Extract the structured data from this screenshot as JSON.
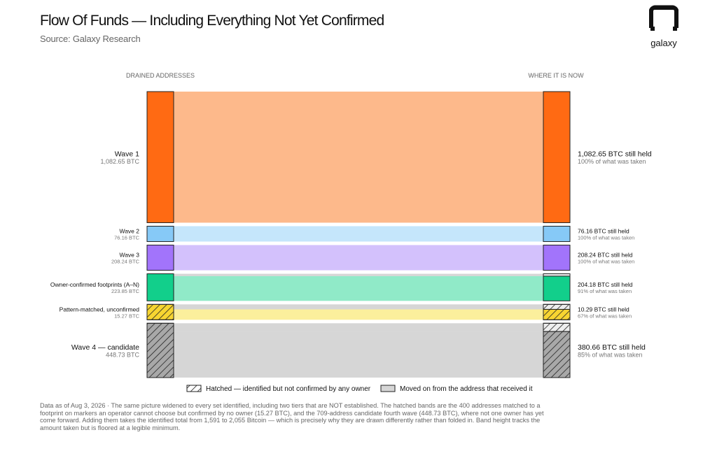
{
  "header": {
    "title": "Flow Of Funds — Including Everything Not Yet Confirmed",
    "subtitle": "Source: Galaxy Research",
    "logo_text": "galaxy"
  },
  "chart_data": {
    "type": "sankey",
    "left_header": "DRAINED ADDRESSES",
    "right_header": "WHERE IT IS NOW",
    "unit": "BTC",
    "flows": [
      {
        "name": "Wave 1",
        "taken": 1082.65,
        "taken_label": "1,082.65 BTC",
        "held": 1082.65,
        "held_label": "1,082.65 BTC still held",
        "pct_label": "100% of what was taken",
        "hatched": false,
        "color": "#ff6a13",
        "band_color": "#fdb98b"
      },
      {
        "name": "Wave 2",
        "taken": 76.16,
        "taken_label": "76.16 BTC",
        "held": 76.16,
        "held_label": "76.16 BTC still held",
        "pct_label": "100% of what was taken",
        "hatched": false,
        "color": "#86c9f7",
        "band_color": "#c5e6fb"
      },
      {
        "name": "Wave 3",
        "taken": 208.24,
        "taken_label": "208.24 BTC",
        "held": 208.24,
        "held_label": "208.24 BTC still held",
        "pct_label": "100% of what was taken",
        "hatched": false,
        "color": "#a274fb",
        "band_color": "#d3c1fc"
      },
      {
        "name": "Owner-confirmed footprints (A–N)",
        "taken": 223.85,
        "taken_label": "223.85 BTC",
        "held": 204.18,
        "held_label": "204.18 BTC still held",
        "pct_label": "91% of what was taken",
        "hatched": false,
        "color": "#12cf8b",
        "band_color": "#90eac8"
      },
      {
        "name": "Pattern-matched, unconfirmed",
        "taken": 15.27,
        "taken_label": "15.27 BTC",
        "held": 10.29,
        "held_label": "10.29 BTC still held",
        "pct_label": "67% of what was taken",
        "hatched": true,
        "color": "#f7d531",
        "band_color": "#fbef9c"
      },
      {
        "name": "Wave 4 — candidate",
        "taken": 448.73,
        "taken_label": "448.73 BTC",
        "held": 380.66,
        "held_label": "380.66 BTC still held",
        "pct_label": "85% of what was taken",
        "hatched": true,
        "color": "#a8a8a8",
        "band_color": "#d6d6d6"
      }
    ],
    "legend": [
      {
        "label": "Hatched — identified but not confirmed by any owner",
        "kind": "hatched"
      },
      {
        "label": "Moved on from the address that received it",
        "kind": "moved"
      }
    ],
    "colors": {
      "moved": "#d6d6d6",
      "outline": "#222222"
    }
  },
  "footnote": "Data as of Aug 3, 2026 · The same picture widened to every set identified, including two tiers that are NOT established. The hatched bands are the 400 addresses matched to a footprint on markers an operator cannot choose but confirmed by no owner (15.27 BTC), and the 709-address candidate fourth wave (448.73 BTC), where not one owner has yet come forward. Adding them takes the identified total from 1,591 to 2,055 Bitcoin — which is precisely why they are drawn differently rather than folded in. Band height tracks the amount taken but is floored at a legible minimum."
}
